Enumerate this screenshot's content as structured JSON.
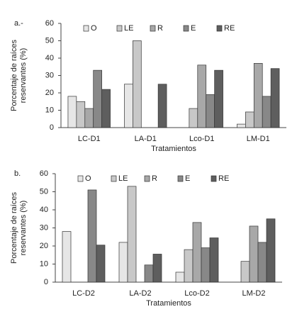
{
  "chart_data": [
    {
      "type": "bar",
      "panel_label": "a.-",
      "ylabel": [
        "Porcentaje de raíces",
        "reservantes (%)"
      ],
      "xlabel": "Tratamientos",
      "categories": [
        "LC-D1",
        "LA-D1",
        "Lco-D1",
        "LM-D1"
      ],
      "series": [
        {
          "name": "O",
          "color": "#e6e6e6",
          "values": [
            18,
            25,
            0,
            2
          ]
        },
        {
          "name": "LE",
          "color": "#c8c8c8",
          "values": [
            15,
            50,
            11,
            9
          ]
        },
        {
          "name": "R",
          "color": "#a8a8a8",
          "values": [
            11,
            0,
            36,
            37
          ]
        },
        {
          "name": "E",
          "color": "#888888",
          "values": [
            33,
            0,
            19,
            18
          ]
        },
        {
          "name": "RE",
          "color": "#5e5e5e",
          "values": [
            22,
            25,
            33,
            34
          ]
        }
      ],
      "ylim": [
        0,
        60
      ],
      "yticks": [
        0,
        10,
        20,
        30,
        40,
        50,
        60
      ],
      "legend": "top"
    },
    {
      "type": "bar",
      "panel_label": "b.",
      "ylabel": [
        "Porcentaje de raíces",
        "reservantes (%)"
      ],
      "xlabel": "Tratamientos",
      "categories": [
        "LC-D2",
        "LA-D2",
        "Lco-D2",
        "LM-D2"
      ],
      "series": [
        {
          "name": "O",
          "color": "#e6e6e6",
          "values": [
            28,
            22,
            5.5,
            0
          ]
        },
        {
          "name": "LE",
          "color": "#c8c8c8",
          "values": [
            0,
            53,
            18,
            11.5
          ]
        },
        {
          "name": "R",
          "color": "#a8a8a8",
          "values": [
            0,
            0,
            33,
            31
          ]
        },
        {
          "name": "E",
          "color": "#888888",
          "values": [
            51,
            9.5,
            19,
            22
          ]
        },
        {
          "name": "RE",
          "color": "#5e5e5e",
          "values": [
            20.5,
            15.5,
            24.5,
            35
          ]
        }
      ],
      "ylim": [
        0,
        60
      ],
      "yticks": [
        0,
        10,
        20,
        30,
        40,
        50,
        60
      ],
      "legend": "top"
    }
  ]
}
